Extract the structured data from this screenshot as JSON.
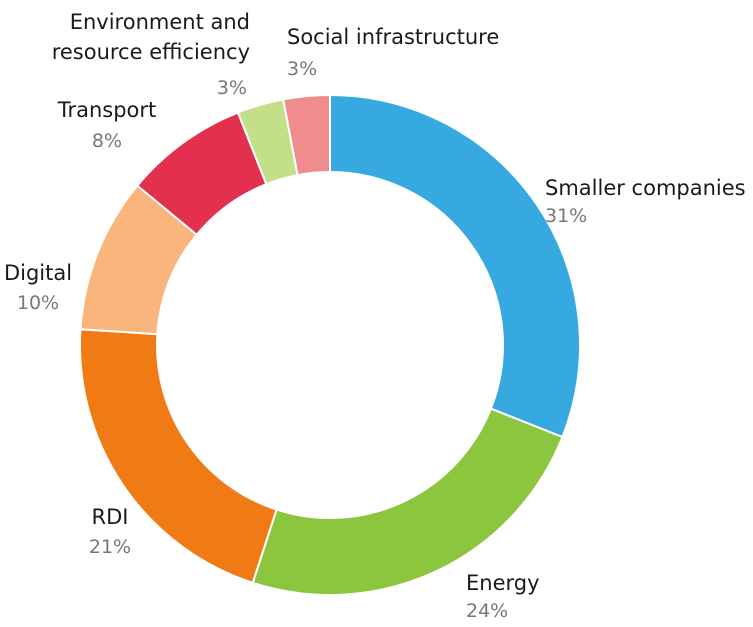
{
  "chart_data": {
    "type": "pie",
    "subtype": "donut",
    "title": "",
    "legend": "none",
    "slices": [
      {
        "name": "Smaller companies",
        "value": 31,
        "value_label": "31%",
        "color": "#36a9e1",
        "label_lines": [
          "Smaller companies"
        ]
      },
      {
        "name": "Energy",
        "value": 24,
        "value_label": "24%",
        "color": "#8cc63e",
        "label_lines": [
          "Energy"
        ]
      },
      {
        "name": "RDI",
        "value": 21,
        "value_label": "21%",
        "color": "#f07a14",
        "label_lines": [
          "RDI"
        ]
      },
      {
        "name": "Digital",
        "value": 10,
        "value_label": "10%",
        "color": "#f9b57b",
        "label_lines": [
          "Digital"
        ]
      },
      {
        "name": "Transport",
        "value": 8,
        "value_label": "8%",
        "color": "#e3304f",
        "label_lines": [
          "Transport"
        ]
      },
      {
        "name": "Environment and resource efficiency",
        "value": 3,
        "value_label": "3%",
        "color": "#c3df87",
        "label_lines": [
          "Environment and",
          "resource efficiency"
        ]
      },
      {
        "name": "Social infrastructure",
        "value": 3,
        "value_label": "3%",
        "color": "#f08c8e",
        "label_lines": [
          "Social infrastructure"
        ]
      }
    ]
  }
}
